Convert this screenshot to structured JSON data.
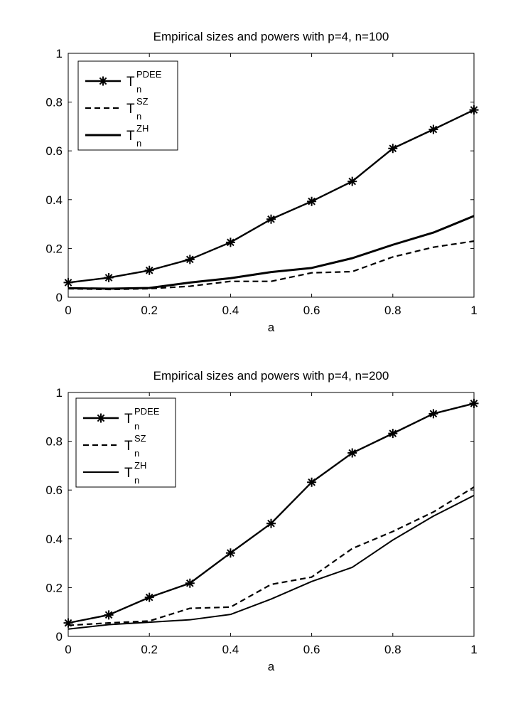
{
  "chart_data": [
    {
      "type": "line",
      "title": "Empirical sizes and powers with p=4, n=100",
      "xlabel": "a",
      "ylabel": "",
      "xlim": [
        0,
        1
      ],
      "ylim": [
        0,
        1
      ],
      "xticks": [
        "0",
        "0.2",
        "0.4",
        "0.6",
        "0.8",
        "1"
      ],
      "yticks": [
        "0",
        "0.2",
        "0.4",
        "0.6",
        "0.8",
        "1"
      ],
      "grid": false,
      "legend_position": "top-left",
      "x": [
        0,
        0.1,
        0.2,
        0.3,
        0.4,
        0.5,
        0.6,
        0.7,
        0.8,
        0.9,
        1.0
      ],
      "series": [
        {
          "name": "T_n^PDEE",
          "base": "T",
          "sub": "n",
          "sup": "PDEE",
          "style": "solid-star",
          "values": [
            0.06,
            0.08,
            0.11,
            0.155,
            0.225,
            0.32,
            0.393,
            0.475,
            0.61,
            0.688,
            0.768
          ]
        },
        {
          "name": "T_n^SZ",
          "base": "T",
          "sub": "n",
          "sup": "SZ",
          "style": "dashed",
          "values": [
            0.035,
            0.032,
            0.035,
            0.045,
            0.065,
            0.065,
            0.1,
            0.105,
            0.165,
            0.205,
            0.23
          ]
        },
        {
          "name": "T_n^ZH",
          "base": "T",
          "sub": "n",
          "sup": "ZH",
          "style": "solid-thick",
          "values": [
            0.037,
            0.035,
            0.038,
            0.06,
            0.078,
            0.103,
            0.12,
            0.16,
            0.215,
            0.265,
            0.333
          ]
        }
      ]
    },
    {
      "type": "line",
      "title": "Empirical sizes and powers with p=4, n=200",
      "xlabel": "a",
      "ylabel": "",
      "xlim": [
        0,
        1
      ],
      "ylim": [
        0,
        1
      ],
      "xticks": [
        "0",
        "0.2",
        "0.4",
        "0.6",
        "0.8",
        "1"
      ],
      "yticks": [
        "0",
        "0.2",
        "0.4",
        "0.6",
        "0.8",
        "1"
      ],
      "grid": false,
      "legend_position": "top-left",
      "x": [
        0,
        0.1,
        0.2,
        0.3,
        0.4,
        0.5,
        0.6,
        0.7,
        0.8,
        0.9,
        1.0
      ],
      "series": [
        {
          "name": "T_n^PDEE",
          "base": "T",
          "sub": "n",
          "sup": "PDEE",
          "style": "solid-star",
          "values": [
            0.055,
            0.088,
            0.16,
            0.218,
            0.342,
            0.463,
            0.632,
            0.752,
            0.832,
            0.913,
            0.955
          ]
        },
        {
          "name": "T_n^SZ",
          "base": "T",
          "sub": "n",
          "sup": "SZ",
          "style": "dashed",
          "values": [
            0.045,
            0.055,
            0.063,
            0.115,
            0.12,
            0.213,
            0.243,
            0.36,
            0.43,
            0.51,
            0.612
          ]
        },
        {
          "name": "T_n^ZH",
          "base": "T",
          "sub": "n",
          "sup": "ZH",
          "style": "solid-thin",
          "values": [
            0.03,
            0.048,
            0.058,
            0.068,
            0.09,
            0.153,
            0.225,
            0.283,
            0.395,
            0.493,
            0.578
          ]
        }
      ]
    }
  ]
}
